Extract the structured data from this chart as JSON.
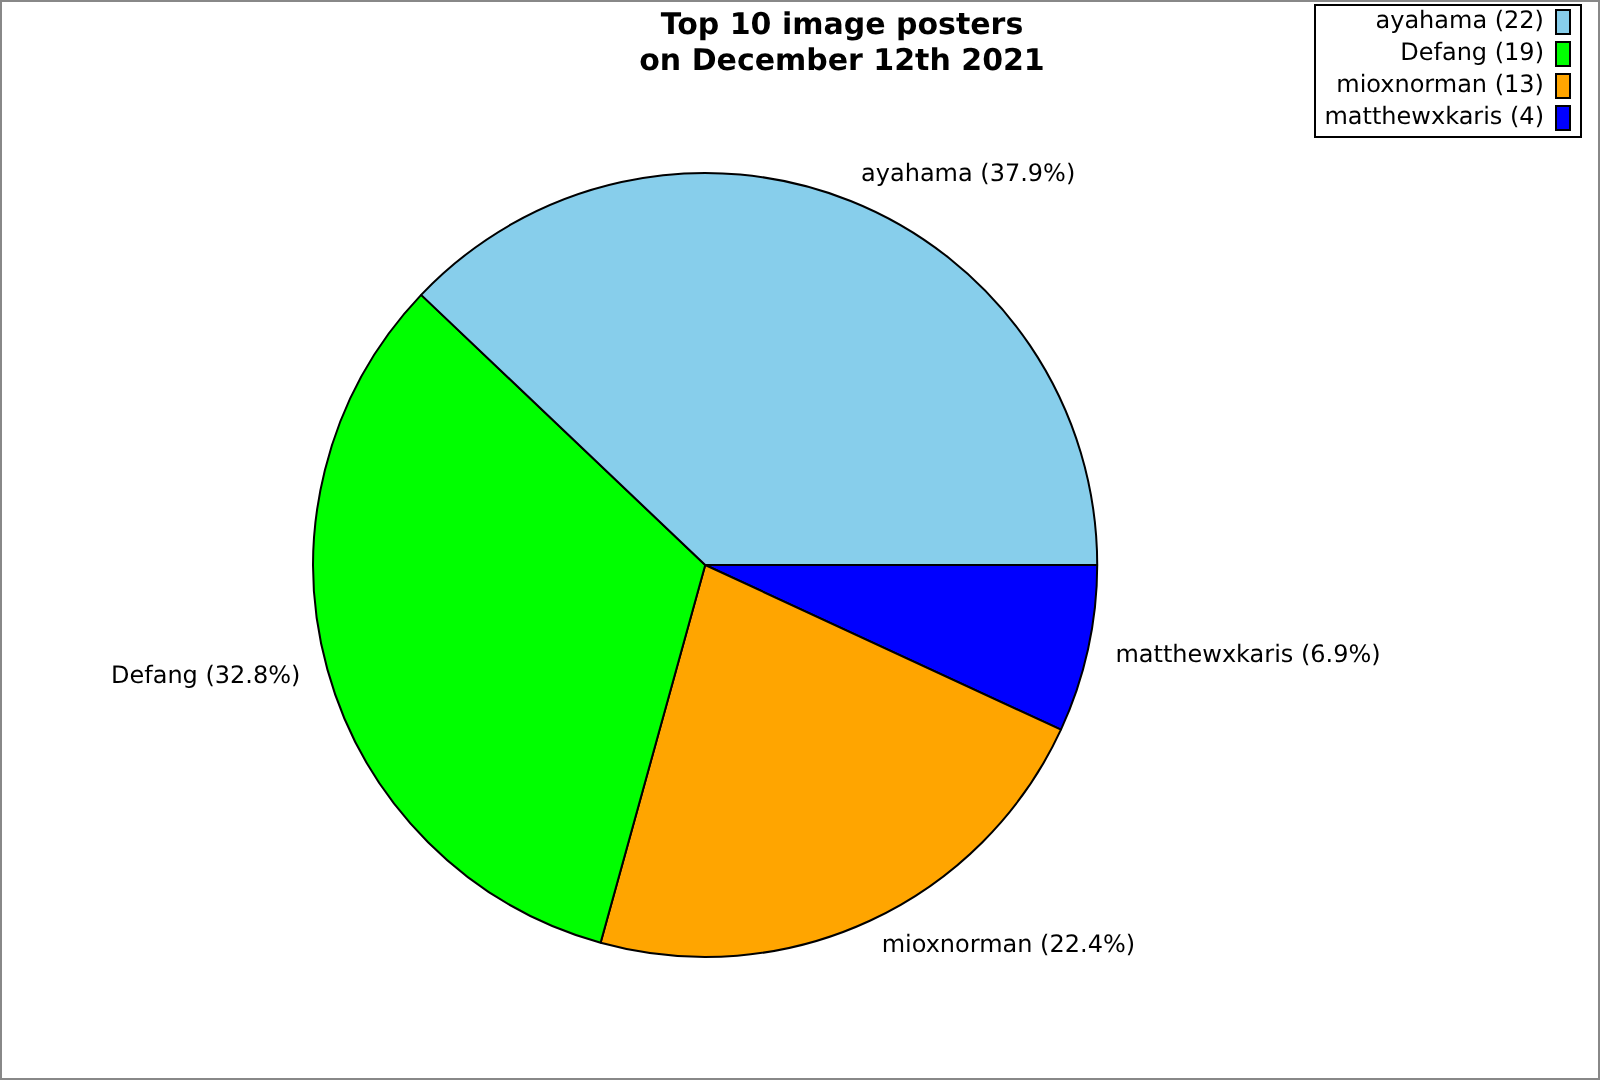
{
  "chart_data": {
    "type": "pie",
    "title": "Top 10 image posters\non December 12th 2021",
    "categories": [
      "ayahama (22)",
      "Defang (19)",
      "mioxnorman (13)",
      "matthewxkaris (4)"
    ],
    "values": [
      37.9,
      32.8,
      22.4,
      6.9
    ],
    "value_labels": [
      "ayahama (37.9%)",
      "Defang (32.8%)",
      "mioxnorman (22.4%)",
      "matthewxkaris (6.9%)"
    ],
    "colors": [
      "#87ceeb",
      "#00ff00",
      "#ffa500",
      "#0000ff"
    ],
    "legend": "top right"
  }
}
